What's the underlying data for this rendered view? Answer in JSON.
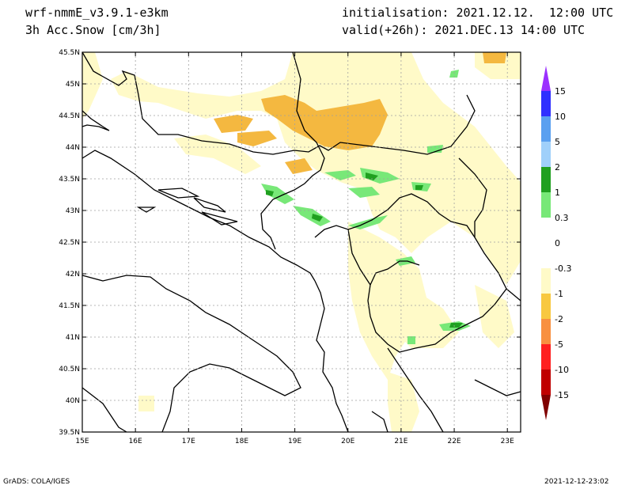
{
  "header": {
    "model": "wrf-nmmE_v3.9.1-e3km",
    "field": "3h Acc.Snow [cm/3h]",
    "initialisation": "initialisation: 2021.12.12.  12:00 UTC",
    "valid": "valid(+26h): 2021.DEC.13 14:00 UTC"
  },
  "footer": {
    "credit": "GrADS: COLA/IGES",
    "timestamp": "2021-12-12-23:02"
  },
  "map": {
    "lon_range": [
      15,
      23.25
    ],
    "lat_range": [
      39.5,
      45.5
    ],
    "lon_ticks": [
      "15E",
      "16E",
      "17E",
      "18E",
      "19E",
      "20E",
      "21E",
      "22E",
      "23E"
    ],
    "lat_ticks": [
      "39.5N",
      "40N",
      "40.5N",
      "41N",
      "41.5N",
      "42N",
      "42.5N",
      "43N",
      "43.5N",
      "44N",
      "44.5N",
      "45N",
      "45.5N"
    ]
  },
  "colorbar": {
    "labels": [
      "15",
      "10",
      "5",
      "2",
      "1",
      "0.3",
      "0",
      "-0.3",
      "-1",
      "-2",
      "-5",
      "-10",
      "-15"
    ],
    "colors": [
      "#9b30ff",
      "#3030ff",
      "#5aa0f0",
      "#a0d0fa",
      "#20a020",
      "#78e878",
      "#ffffff",
      "#ffffff",
      "#fffac8",
      "#f8c840",
      "#f89040",
      "#ff2020",
      "#c00000",
      "#800000"
    ]
  }
}
